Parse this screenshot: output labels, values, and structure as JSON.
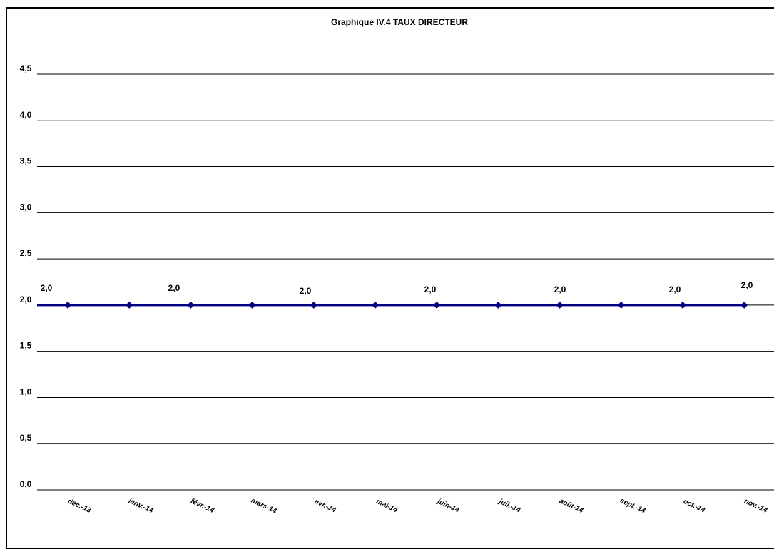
{
  "chart_data": {
    "type": "line",
    "title": "Graphique IV.4 TAUX DIRECTEUR",
    "categories": [
      "déc.-13",
      "janv.-14",
      "févr.-14",
      "mars-14",
      "avr.-14",
      "mai-14",
      "juin-14",
      "juil.-14",
      "août-14",
      "sept.-14",
      "oct.-14",
      "nov.-14"
    ],
    "series": [
      {
        "values": [
          2.0,
          2.0,
          2.0,
          2.0,
          2.0,
          2.0,
          2.0,
          2.0,
          2.0,
          2.0,
          2.0,
          2.0
        ],
        "color": "#000080",
        "data_labels": [
          "2,0",
          "",
          "2,0",
          "",
          "2,0",
          "",
          "2,0",
          "",
          "2,0",
          "",
          "2,0",
          "2,0"
        ]
      }
    ],
    "yticks": [
      "0,0",
      "0,5",
      "1,0",
      "1,5",
      "2,0",
      "2,5",
      "3,0",
      "3,5",
      "4,0",
      "4,5"
    ],
    "ylim": [
      0,
      4.5
    ],
    "grid": true,
    "legend": "none",
    "xlabel": "",
    "ylabel": ""
  }
}
